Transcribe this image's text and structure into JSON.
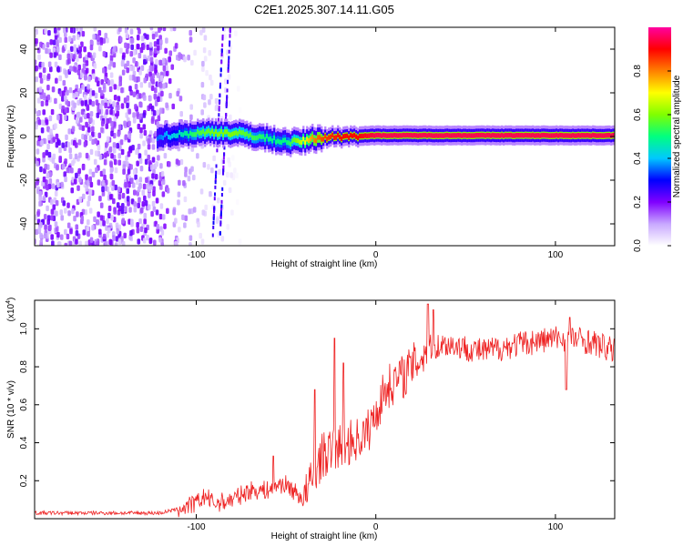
{
  "page_title": "C2E1.2025.307.14.11.G05",
  "chart_data": [
    {
      "type": "heatmap",
      "title": "C2E1.2025.307.14.11.G05",
      "xlabel": "Height of straight line (km)",
      "ylabel": "Frequency (Hz)",
      "xlim": [
        -190,
        133
      ],
      "ylim": [
        -50,
        50
      ],
      "x_ticks": [
        -100,
        0,
        100
      ],
      "y_ticks": [
        -40,
        -20,
        0,
        20,
        40
      ],
      "colorbar": {
        "label": "Normalized spectral amplitude",
        "range": [
          0,
          1
        ],
        "ticks": [
          "0.0",
          "0.2",
          "0.4",
          "0.6",
          "0.8"
        ],
        "tick_values": [
          0.0,
          0.2,
          0.4,
          0.6,
          0.8
        ],
        "colors": [
          "#ffffff",
          "#c8a8ff",
          "#8000ff",
          "#0000ff",
          "#00c8ff",
          "#00ff80",
          "#80ff00",
          "#ffff00",
          "#ff8000",
          "#ff0000",
          "#ff00a0"
        ]
      },
      "signal_track": {
        "x": [
          -122,
          -110,
          -100,
          -90,
          -80,
          -70,
          -60,
          -50,
          -45,
          -40,
          -35,
          -30,
          -20,
          -10,
          0,
          50,
          100,
          133
        ],
        "freq_hz": [
          0,
          1,
          1.5,
          2,
          1.5,
          0.5,
          -1,
          -2.5,
          -2.5,
          -2,
          -1,
          -0.5,
          0,
          0.3,
          0.5,
          0.5,
          0.5,
          0.5
        ],
        "amplitude": [
          0.35,
          0.45,
          0.55,
          0.6,
          0.6,
          0.55,
          0.5,
          0.5,
          0.6,
          0.7,
          0.8,
          0.85,
          0.9,
          0.9,
          0.95,
          0.95,
          0.95,
          0.95
        ]
      },
      "noise_region": {
        "x_range": [
          -190,
          -120
        ],
        "amplitude": 0.2
      }
    },
    {
      "type": "line",
      "xlabel": "Height of straight line (km)",
      "ylabel": "SNR (10 * v/v)",
      "y_scale_label": "(x10",
      "y_scale_exp": "4",
      "y_scale_close": ")",
      "xlim": [
        -190,
        133
      ],
      "ylim": [
        0,
        1.15
      ],
      "x_ticks": [
        -100,
        0,
        100
      ],
      "y_ticks": [
        "0.2",
        "0.4",
        "0.6",
        "0.8",
        "1.0"
      ],
      "y_tick_values": [
        0.2,
        0.4,
        0.6,
        0.8,
        1.0
      ],
      "series": [
        {
          "name": "SNR",
          "color": "#ee2222",
          "x": [
            -190,
            -150,
            -120,
            -110,
            -100,
            -95,
            -90,
            -80,
            -70,
            -60,
            -55,
            -50,
            -40,
            -35,
            -30,
            -20,
            -15,
            -10,
            -5,
            0,
            5,
            10,
            15,
            20,
            25,
            30,
            40,
            50,
            60,
            80,
            100,
            110,
            120,
            133
          ],
          "values": [
            0.03,
            0.03,
            0.03,
            0.05,
            0.08,
            0.12,
            0.08,
            0.1,
            0.15,
            0.15,
            0.18,
            0.18,
            0.1,
            0.22,
            0.33,
            0.38,
            0.4,
            0.42,
            0.45,
            0.55,
            0.68,
            0.72,
            0.75,
            0.8,
            0.85,
            0.9,
            0.92,
            0.9,
            0.88,
            0.92,
            0.95,
            0.95,
            0.93,
            0.88
          ],
          "spikes": [
            {
              "x": -23,
              "value": 0.95
            },
            {
              "x": -18,
              "value": 0.82
            },
            {
              "x": -34,
              "value": 0.68
            },
            {
              "x": 29,
              "value": 1.13
            },
            {
              "x": 32,
              "value": 1.1
            },
            {
              "x": 108,
              "value": 1.06
            },
            {
              "x": 106,
              "value": 0.68
            },
            {
              "x": -57,
              "value": 0.33
            }
          ]
        }
      ]
    }
  ]
}
